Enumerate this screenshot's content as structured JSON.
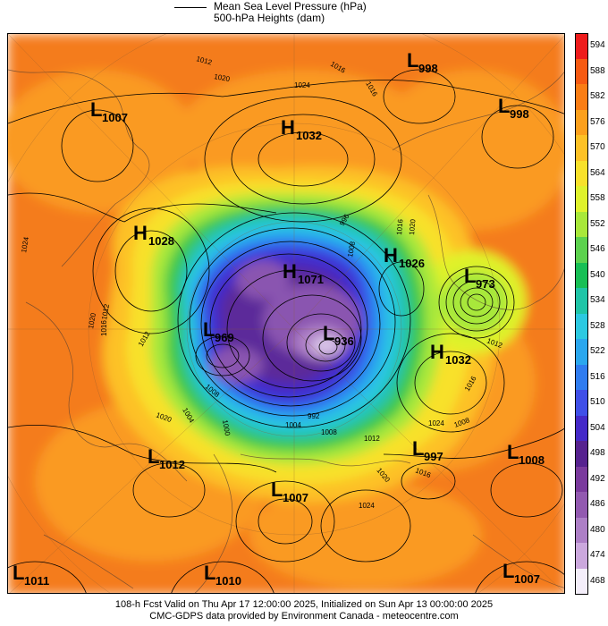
{
  "legend": {
    "mslp_label": "Mean Sea Level Pressure (hPa)",
    "heights_label": "500-hPa Heights (dam)"
  },
  "colorbar": {
    "levels": [
      "594",
      "588",
      "582",
      "576",
      "570",
      "564",
      "558",
      "552",
      "546",
      "540",
      "534",
      "528",
      "522",
      "516",
      "510",
      "504",
      "498",
      "492",
      "486",
      "480",
      "474",
      "468"
    ],
    "colors": [
      "#ee1c1c",
      "#f65a12",
      "#fa7d14",
      "#fca01c",
      "#fdc125",
      "#f8e12a",
      "#dff22c",
      "#a8e83a",
      "#5cd24e",
      "#17bf55",
      "#1fc5a7",
      "#2cc9e1",
      "#2aa7ee",
      "#2f7cf0",
      "#3f4fe8",
      "#4429c8",
      "#56228f",
      "#7a3a9d",
      "#9259b0",
      "#ad7fc6",
      "#cba8dd",
      "#f4eefa"
    ]
  },
  "systems": [
    {
      "type": "L",
      "value": "998"
    },
    {
      "type": "L",
      "value": "1007"
    },
    {
      "type": "H",
      "value": "1032"
    },
    {
      "type": "L",
      "value": "998"
    },
    {
      "type": "H",
      "value": "1028"
    },
    {
      "type": "H",
      "value": "1071"
    },
    {
      "type": "H",
      "value": "1026"
    },
    {
      "type": "L",
      "value": "973"
    },
    {
      "type": "L",
      "value": "969"
    },
    {
      "type": "L",
      "value": "936"
    },
    {
      "type": "H",
      "value": "1032"
    },
    {
      "type": "L",
      "value": "997"
    },
    {
      "type": "L",
      "value": "1008"
    },
    {
      "type": "L",
      "value": "1012"
    },
    {
      "type": "L",
      "value": "1007"
    },
    {
      "type": "L",
      "value": "1011"
    },
    {
      "type": "L",
      "value": "1010"
    },
    {
      "type": "L",
      "value": "1007"
    }
  ],
  "isobar_labels": [
    "1012",
    "1016",
    "1020",
    "1024",
    "1016",
    "1012",
    "1020",
    "1016",
    "1012",
    "1008",
    "1004",
    "1000",
    "992",
    "996",
    "1008",
    "1016",
    "1020",
    "1024",
    "1012",
    "1004",
    "1008",
    "1016",
    "1020",
    "1024",
    "1008",
    "1012",
    "1016",
    "1020",
    "1024"
  ],
  "map_colors": {
    "ocean_warm": "#f47b1b",
    "orange": "#fa9a20",
    "yellow_orange": "#fdc125",
    "yellow": "#f8e12a",
    "lime": "#bde83a",
    "green": "#3cc84c",
    "teal": "#20c3b0",
    "cyan": "#2cc9e1",
    "light_blue": "#2aa7ee",
    "blue": "#2f6ff0",
    "indigo": "#3d38d8",
    "purple": "#5b2a9a",
    "lilac": "#8a55b0",
    "pale": "#d8c4e8"
  },
  "footer": {
    "line1": "108-h Fcst Valid on Thu Apr 17 12:00:00 2025, Initialized on Sun Apr 13 00:00:00 2025",
    "line2": "CMC-GDPS data provided by Environment Canada - meteocentre.com"
  }
}
